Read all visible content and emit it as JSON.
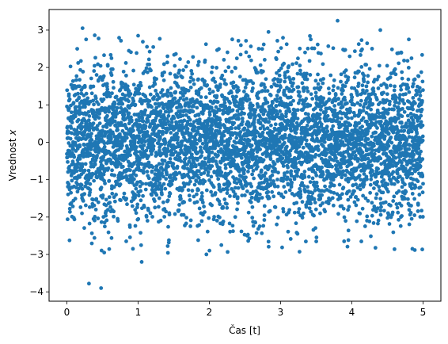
{
  "chart_data": {
    "type": "scatter",
    "title": "",
    "xlabel": "Čas [t]",
    "ylabel_main": "Vrednost ",
    "ylabel_var": "x",
    "xlim": [
      -0.25,
      5.25
    ],
    "ylim": [
      -4.25,
      3.55
    ],
    "xticks": [
      0,
      1,
      2,
      3,
      4,
      5
    ],
    "yticks": [
      -4,
      -3,
      -2,
      -1,
      0,
      1,
      2,
      3
    ],
    "xtick_labels": [
      "0",
      "1",
      "2",
      "3",
      "4",
      "5"
    ],
    "ytick_labels": [
      "−4",
      "−3",
      "−2",
      "−1",
      "0",
      "1",
      "2",
      "3"
    ],
    "grid": false,
    "legend": "none",
    "point_color": "#1f77b4",
    "series": [
      {
        "n_points": 5000,
        "x_range": [
          0,
          5
        ],
        "y_mean": 0,
        "y_std": 1,
        "notable_points": [
          {
            "x": 0.22,
            "y": 3.05
          },
          {
            "x": 0.27,
            "y": 2.75
          },
          {
            "x": 0.31,
            "y": -3.78
          },
          {
            "x": 0.48,
            "y": -3.9
          },
          {
            "x": 1.05,
            "y": -3.2
          },
          {
            "x": 1.0,
            "y": 2.85
          },
          {
            "x": 2.83,
            "y": 2.95
          },
          {
            "x": 3.8,
            "y": 3.25
          },
          {
            "x": 4.4,
            "y": 3.0
          },
          {
            "x": 4.8,
            "y": 2.75
          },
          {
            "x": 4.85,
            "y": -2.85
          }
        ]
      }
    ]
  }
}
